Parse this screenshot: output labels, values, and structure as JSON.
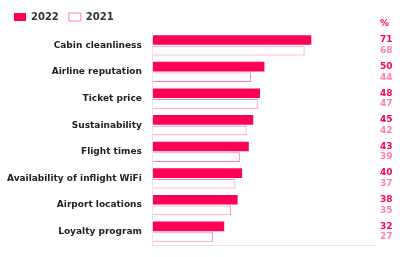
{
  "chart_data": {
    "type": "bar",
    "orientation": "horizontal",
    "categories": [
      "Cabin cleanliness",
      "Airline reputation",
      "Ticket price",
      "Sustainability",
      "Flight times",
      "Availability of inflight WiFi",
      "Airport locations",
      "Loyalty program"
    ],
    "series": [
      {
        "name": "2022",
        "color": "#FF0057",
        "values": [
          71,
          50,
          48,
          45,
          43,
          40,
          38,
          32
        ]
      },
      {
        "name": "2021",
        "color": "#FF80AB",
        "values": [
          68,
          44,
          47,
          42,
          39,
          37,
          35,
          27
        ]
      }
    ],
    "xlim": [
      0,
      100
    ],
    "annotations": [
      "%"
    ],
    "data_labels": true,
    "legend": "upper left",
    "grid": false,
    "tick_labels": "y"
  }
}
